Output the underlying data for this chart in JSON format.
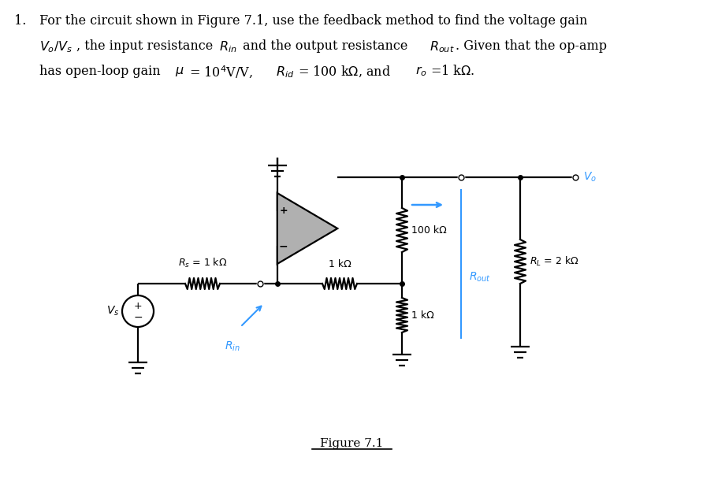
{
  "circuit_color": "#000000",
  "blue_color": "#3399FF",
  "bg_color": "#ffffff",
  "Rs_label": "$R_s$ = 1 kΩ",
  "R1_label": "1 kΩ",
  "R2_label": "100 kΩ",
  "R3_label": "1 kΩ",
  "RL_label": "$R_L$ = 2 kΩ",
  "Vs_label": "$V_s$",
  "Vo_label": "$V_o$",
  "Rin_label": "$R_{in}$",
  "Rout_label": "$R_{out}$",
  "figure_label": "Figure 7.1",
  "opamp_fill": "#b0b0b0",
  "lw": 1.6
}
